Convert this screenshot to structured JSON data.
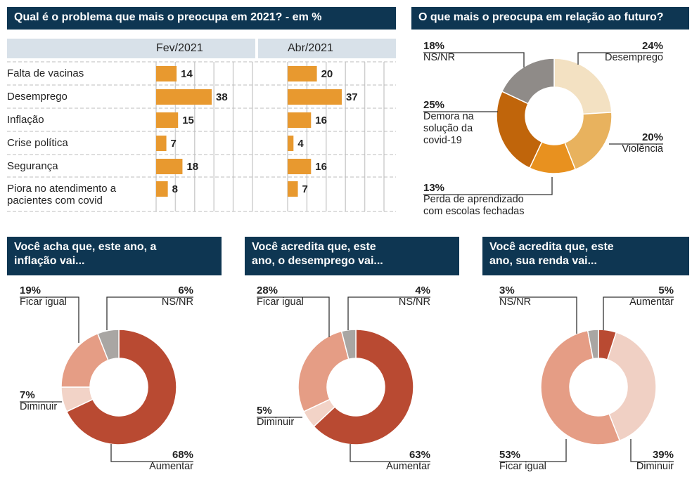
{
  "chart_data": [
    {
      "type": "bar",
      "title": "Qual é o problema que mais o preocupa em 2021? - em %",
      "categories": [
        "Falta de vacinas",
        "Desemprego",
        "Inflação",
        "Crise política",
        "Segurança",
        "Piora no atendimento a pacientes com covid"
      ],
      "series": [
        {
          "name": "Fev/2021",
          "values": [
            14,
            38,
            15,
            7,
            18,
            8
          ]
        },
        {
          "name": "Abr/2021",
          "values": [
            20,
            37,
            16,
            4,
            16,
            7
          ]
        }
      ],
      "color": "#e8992f"
    },
    {
      "type": "pie",
      "title": "O que mais o preocupa em relação ao futuro?",
      "slices": [
        {
          "label": "Desemprego",
          "value": 24,
          "text": "24%",
          "color": "#f3e1c2"
        },
        {
          "label": "Violência",
          "value": 20,
          "text": "20%",
          "color": "#e8b25e"
        },
        {
          "label": "Perda de aprendizado com escolas fechadas",
          "value": 13,
          "text": "13%",
          "color": "#e8911f"
        },
        {
          "label": "Demora na solução da covid-19",
          "value": 25,
          "text": "25%",
          "color": "#c0650b"
        },
        {
          "label": "NS/NR",
          "value": 18,
          "text": "18%",
          "color": "#8f8b88"
        }
      ]
    },
    {
      "type": "pie",
      "title": "Você acha que, este ano, a inflação vai...",
      "slices": [
        {
          "label": "Aumentar",
          "value": 68,
          "text": "68%",
          "color": "#b94a32"
        },
        {
          "label": "Diminuir",
          "value": 7,
          "text": "7%",
          "color": "#f2d3c7"
        },
        {
          "label": "Ficar igual",
          "value": 19,
          "text": "19%",
          "color": "#e59d85"
        },
        {
          "label": "NS/NR",
          "value": 6,
          "text": "6%",
          "color": "#a9a6a3"
        }
      ]
    },
    {
      "type": "pie",
      "title": "Você acredita que, este ano, o desemprego vai...",
      "slices": [
        {
          "label": "Aumentar",
          "value": 63,
          "text": "63%",
          "color": "#b94a32"
        },
        {
          "label": "Diminuir",
          "value": 5,
          "text": "5%",
          "color": "#f2d3c7"
        },
        {
          "label": "Ficar igual",
          "value": 28,
          "text": "28%",
          "color": "#e59d85"
        },
        {
          "label": "NS/NR",
          "value": 4,
          "text": "4%",
          "color": "#a9a6a3"
        }
      ]
    },
    {
      "type": "pie",
      "title": "Você acredita que, este ano, sua renda vai...",
      "slices": [
        {
          "label": "Aumentar",
          "value": 5,
          "text": "5%",
          "color": "#b94a32"
        },
        {
          "label": "Diminuir",
          "value": 39,
          "text": "39%",
          "color": "#f0d0c4"
        },
        {
          "label": "Ficar igual",
          "value": 53,
          "text": "53%",
          "color": "#e59d85"
        },
        {
          "label": "NS/NR",
          "value": 3,
          "text": "3%",
          "color": "#a9a6a3"
        }
      ]
    }
  ]
}
